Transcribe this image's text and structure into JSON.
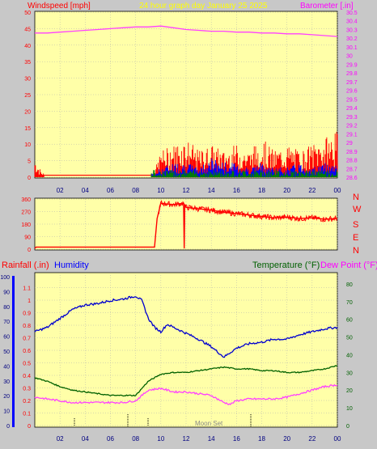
{
  "header": {
    "left_title": "Windspeed [mph]",
    "center_title": "24 hour graph day   January 25 2025",
    "right_title": "Barometer [.in]"
  },
  "lower_header": {
    "rainfall_label": "Rainfall (.in)",
    "humidity_label": "Humidity",
    "temperature_label": "Temperature (°F)",
    "dewpoint_label": "Dew Point (°F)"
  },
  "compass": [
    "N",
    "W",
    "S",
    "E",
    "N"
  ],
  "markers": {
    "moon_set_label": "Moon Set"
  },
  "colors": {
    "plot_bg": "#ffffa8",
    "frame_bg": "#c8c8c8",
    "wind": "#ff0000",
    "gust": "#0000ff",
    "green": "#008000",
    "barometer": "#ff40ff",
    "humidity": "#0000d0",
    "temperature": "#006000",
    "dewpoint": "#ff40ff",
    "title_yellow": "#ffff00"
  },
  "chart_data": [
    {
      "type": "line",
      "x_ticks": [
        "02",
        "04",
        "06",
        "08",
        "10",
        "12",
        "14",
        "16",
        "18",
        "20",
        "22",
        "00"
      ],
      "ylabel": "Windspeed [mph]",
      "ylim": [
        0,
        50
      ],
      "y_ticks": [
        "0",
        "5",
        "10",
        "15",
        "20",
        "25",
        "30",
        "35",
        "40",
        "45",
        "50"
      ],
      "y2label": "Barometer [.in]",
      "y2lim": [
        28.6,
        30.5
      ],
      "y2_ticks": [
        "28.6",
        "28.7",
        "28.8",
        "28.9",
        "29",
        "29.1",
        "29.2",
        "29.3",
        "29.4",
        "29.5",
        "29.6",
        "29.7",
        "29.8",
        "29.9",
        "30",
        "30.1",
        "30.2",
        "30.3",
        "30.4",
        "30.5"
      ],
      "series": [
        {
          "name": "Barometer",
          "x": [
            0,
            1,
            2,
            3,
            4,
            5,
            6,
            7,
            8,
            9,
            10,
            11,
            12,
            13,
            14,
            15,
            16,
            17,
            18,
            19,
            20,
            21,
            22,
            23,
            24
          ],
          "values": [
            30.26,
            30.26,
            30.27,
            30.28,
            30.29,
            30.3,
            30.31,
            30.32,
            30.33,
            30.33,
            30.34,
            30.32,
            30.3,
            30.29,
            30.28,
            30.28,
            30.27,
            30.27,
            30.26,
            30.26,
            30.25,
            30.25,
            30.24,
            30.23,
            30.22
          ]
        },
        {
          "name": "Windspeed",
          "x": [
            0,
            0.5,
            1,
            9,
            9.5,
            10,
            11,
            12,
            13,
            14,
            15,
            16,
            17,
            18,
            19,
            20,
            21,
            22,
            23,
            24
          ],
          "values": [
            3,
            1,
            0,
            0,
            1,
            4,
            5,
            6,
            4,
            5,
            4,
            5,
            4,
            6,
            4,
            5,
            4,
            5,
            6,
            7
          ]
        },
        {
          "name": "Gust",
          "x": [
            9.5,
            10,
            11,
            12,
            13,
            14,
            15,
            16,
            17,
            18,
            19,
            20,
            21,
            22,
            23,
            24
          ],
          "values": [
            1,
            2,
            3,
            3,
            2,
            4,
            3,
            3,
            2,
            3,
            2,
            2,
            3,
            2,
            3,
            3
          ]
        }
      ]
    },
    {
      "type": "line",
      "x_ticks": [
        "02",
        "04",
        "06",
        "08",
        "10",
        "12",
        "14",
        "16",
        "18",
        "20",
        "22",
        "00"
      ],
      "ylabel": "Wind direction",
      "ylim": [
        0,
        360
      ],
      "y_ticks": [
        "0",
        "90",
        "180",
        "270",
        "360"
      ],
      "series": [
        {
          "name": "Direction",
          "x": [
            0,
            0.1,
            9.5,
            9.7,
            10,
            11,
            11.8,
            11.85,
            11.9,
            12,
            13,
            14,
            15,
            16,
            17,
            18,
            19,
            20,
            21,
            22,
            23,
            24
          ],
          "values": [
            5,
            15,
            15,
            220,
            330,
            320,
            330,
            5,
            320,
            300,
            290,
            280,
            265,
            255,
            245,
            235,
            225,
            230,
            220,
            225,
            215,
            220
          ]
        }
      ]
    },
    {
      "type": "line",
      "x_ticks": [
        "02",
        "04",
        "06",
        "08",
        "10",
        "12",
        "14",
        "16",
        "18",
        "20",
        "22",
        "00"
      ],
      "ylabel": "Rainfall (.in)",
      "ylim": [
        0,
        1.2
      ],
      "y_ticks": [
        "0",
        "0.1",
        "0.2",
        "0.3",
        "0.4",
        "0.5",
        "0.6",
        "0.7",
        "0.8",
        "0.9",
        "1",
        "1.1"
      ],
      "humidity_ticks": [
        "0",
        "10",
        "20",
        "30",
        "40",
        "50",
        "60",
        "70",
        "80",
        "90",
        "100"
      ],
      "y2label": "Temperature (°F)",
      "y2lim": [
        0,
        85
      ],
      "y2_ticks": [
        "0",
        "10",
        "20",
        "30",
        "40",
        "50",
        "60",
        "70",
        "80"
      ],
      "series": [
        {
          "name": "Humidity",
          "x": [
            0,
            1,
            2,
            3,
            4,
            5,
            6,
            7,
            8,
            8.5,
            9,
            9.5,
            10,
            10.5,
            11,
            12,
            13,
            14,
            15,
            15.5,
            16,
            17,
            18,
            19,
            20,
            21,
            22,
            23,
            24
          ],
          "values": [
            63,
            66,
            72,
            78,
            81,
            82,
            84,
            85,
            87,
            84,
            72,
            66,
            63,
            68,
            66,
            62,
            58,
            53,
            46,
            49,
            52,
            55,
            56,
            58,
            58,
            61,
            63,
            65,
            66
          ]
        },
        {
          "name": "Temperature",
          "x": [
            0,
            1,
            2,
            3,
            4,
            5,
            6,
            7,
            8,
            8.5,
            9,
            10,
            11,
            12,
            13,
            14,
            15,
            16,
            17,
            18,
            19,
            20,
            21,
            22,
            23,
            24
          ],
          "values": [
            27,
            25,
            22,
            20,
            19,
            18,
            17,
            17,
            17,
            21,
            25,
            29,
            30,
            30,
            31,
            32,
            33,
            32,
            32,
            31,
            31,
            30,
            30,
            31,
            32,
            34
          ]
        },
        {
          "name": "Dew Point",
          "x": [
            0,
            1,
            2,
            3,
            4,
            5,
            6,
            7,
            8,
            8.5,
            9,
            10,
            11,
            12,
            13,
            14,
            15,
            15.5,
            16,
            17,
            18,
            19,
            20,
            21,
            22,
            23,
            24
          ],
          "values": [
            16,
            15,
            14,
            13,
            13,
            13,
            13,
            13,
            14,
            17,
            20,
            21,
            19,
            19,
            18,
            17,
            13,
            12,
            14,
            15,
            15,
            15,
            16,
            18,
            20,
            22,
            23
          ]
        }
      ]
    }
  ]
}
